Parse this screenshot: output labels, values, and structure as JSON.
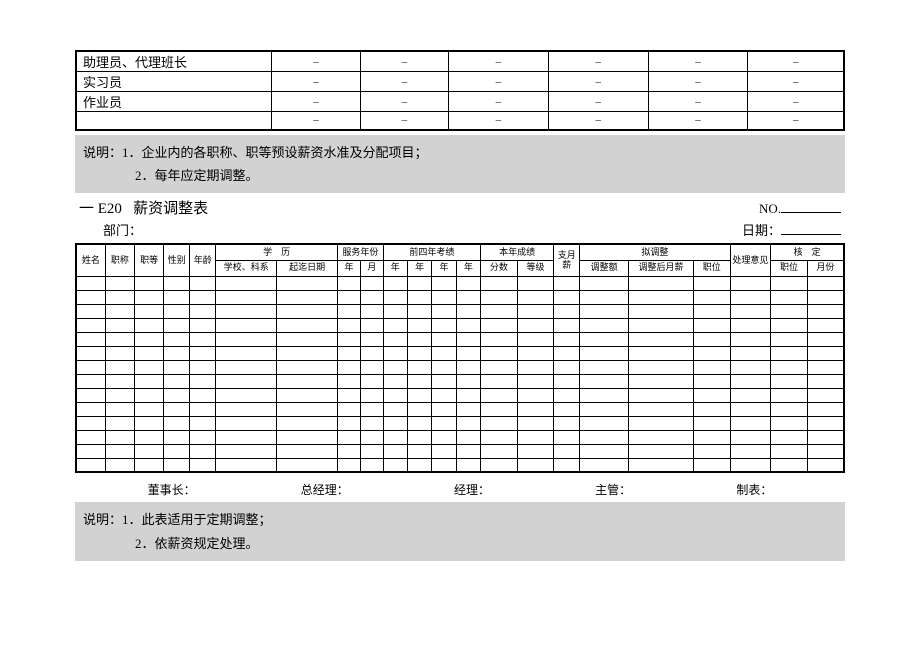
{
  "top_table": {
    "rows": [
      {
        "label": "助理员、代理班长",
        "cells": [
          "–",
          "–",
          "–",
          "–",
          "–",
          "–"
        ]
      },
      {
        "label": "实习员",
        "cells": [
          "–",
          "–",
          "–",
          "–",
          "–",
          "–"
        ]
      },
      {
        "label": "作业员",
        "cells": [
          "–",
          "–",
          "–",
          "–",
          "–",
          "–"
        ]
      },
      {
        "label": "",
        "cells": [
          "–",
          "–",
          "–",
          "–",
          "–",
          "–"
        ]
      }
    ],
    "col_widths_pct": [
      25.5,
      11.5,
      11.5,
      13,
      13,
      13,
      12.5
    ]
  },
  "note1": {
    "line1": "说明：1．企业内的各职称、职等预设薪资水准及分配项目；",
    "line2": "2．每年应定期调整。"
  },
  "title": {
    "code": "一 E20",
    "name": "薪资调整表",
    "no_label": "NO.",
    "dept_label": "部门：",
    "date_label": "日期："
  },
  "main_headers": {
    "r1": {
      "name": "姓名",
      "title": "职称",
      "grade": "职等",
      "sex": "性别",
      "age": "年龄",
      "edu": "学　历",
      "service": "服务年份",
      "prev4": "前四年考绩",
      "thisyear": "本年成绩",
      "monthly": "支月薪",
      "adjust": "拟调整",
      "opinion": "处理意见",
      "approve": "核　定"
    },
    "r2": {
      "school": "学校、科系",
      "startdate": "起迄日期",
      "ym1": "年",
      "ym2": "月",
      "y1": "年",
      "y2": "年",
      "y3": "年",
      "y4": "年",
      "score": "分数",
      "level": "等级",
      "adj_amt": "调整额",
      "adj_after": "调整后月薪",
      "adj_pos": "职位",
      "appr_pos": "职位",
      "appr_mon": "月份"
    }
  },
  "main_body_rows": 14,
  "signatures": {
    "s1": "董事长：",
    "s2": "总经理：",
    "s3": "经理：",
    "s4": "主管：",
    "s5": "制表："
  },
  "note2": {
    "line1": "说明：1．此表适用于定期调整；",
    "line2": "2．依薪资规定处理。"
  },
  "colors": {
    "gray": "#d2d2d2",
    "border": "#000000",
    "bg": "#ffffff"
  }
}
